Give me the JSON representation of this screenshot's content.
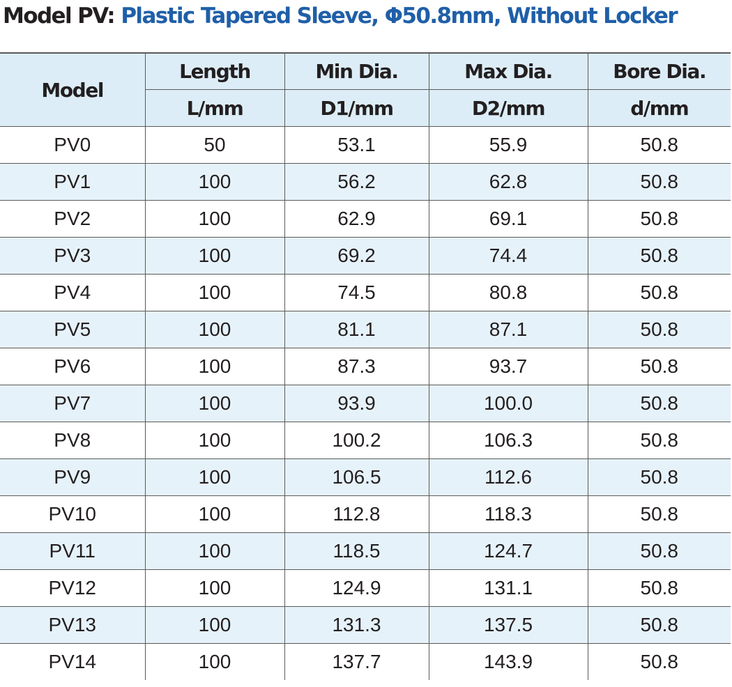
{
  "title": {
    "model": "Model PV:",
    "description": "Plastic Tapered Sleeve, Φ50.8mm, Without Locker"
  },
  "table": {
    "headers": {
      "model": "Model",
      "length": {
        "label": "Length",
        "unit": "L/mm"
      },
      "min_dia": {
        "label": "Min Dia.",
        "unit": "D1/mm"
      },
      "max_dia": {
        "label": "Max Dia.",
        "unit": "D2/mm"
      },
      "bore_dia": {
        "label": "Bore Dia.",
        "unit": "d/mm"
      }
    },
    "rows": [
      {
        "model": "PV0",
        "length": "50",
        "min": "53.1",
        "max": "55.9",
        "bore": "50.8"
      },
      {
        "model": "PV1",
        "length": "100",
        "min": "56.2",
        "max": "62.8",
        "bore": "50.8"
      },
      {
        "model": "PV2",
        "length": "100",
        "min": "62.9",
        "max": "69.1",
        "bore": "50.8"
      },
      {
        "model": "PV3",
        "length": "100",
        "min": "69.2",
        "max": "74.4",
        "bore": "50.8"
      },
      {
        "model": "PV4",
        "length": "100",
        "min": "74.5",
        "max": "80.8",
        "bore": "50.8"
      },
      {
        "model": "PV5",
        "length": "100",
        "min": "81.1",
        "max": "87.1",
        "bore": "50.8"
      },
      {
        "model": "PV6",
        "length": "100",
        "min": "87.3",
        "max": "93.7",
        "bore": "50.8"
      },
      {
        "model": "PV7",
        "length": "100",
        "min": "93.9",
        "max": "100.0",
        "bore": "50.8"
      },
      {
        "model": "PV8",
        "length": "100",
        "min": "100.2",
        "max": "106.3",
        "bore": "50.8"
      },
      {
        "model": "PV9",
        "length": "100",
        "min": "106.5",
        "max": "112.6",
        "bore": "50.8"
      },
      {
        "model": "PV10",
        "length": "100",
        "min": "112.8",
        "max": "118.3",
        "bore": "50.8"
      },
      {
        "model": "PV11",
        "length": "100",
        "min": "118.5",
        "max": "124.7",
        "bore": "50.8"
      },
      {
        "model": "PV12",
        "length": "100",
        "min": "124.9",
        "max": "131.1",
        "bore": "50.8"
      },
      {
        "model": "PV13",
        "length": "100",
        "min": "131.3",
        "max": "137.5",
        "bore": "50.8"
      },
      {
        "model": "PV14",
        "length": "100",
        "min": "137.7",
        "max": "143.9",
        "bore": "50.8"
      }
    ]
  },
  "colors": {
    "title_text": "#231f20",
    "title_accent": "#1f5fa8",
    "header_background": "#ddedf7",
    "alternate_row_background": "#e6f2fa",
    "grid_lines": "#5a5a5a"
  }
}
